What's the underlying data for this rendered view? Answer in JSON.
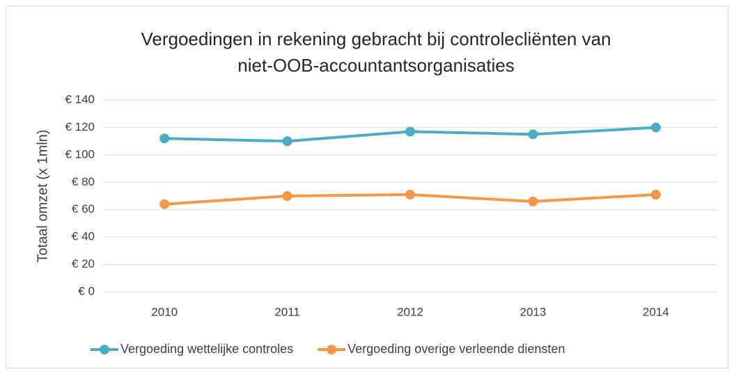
{
  "chart_data": {
    "type": "line",
    "title": [
      "Vergoedingen in rekening gebracht bij controlecliënten van",
      "niet-OOB-accountantsorganisaties"
    ],
    "y_label": "Totaal omzet (x 1mln)",
    "categories": [
      "2010",
      "2011",
      "2012",
      "2013",
      "2014"
    ],
    "series": [
      {
        "name": "Vergoeding wettelijke controles",
        "color": "#4bacc6",
        "values": [
          112,
          110,
          117,
          115,
          120
        ]
      },
      {
        "name": "Vergoeding overige verleende diensten",
        "color": "#f79646",
        "values": [
          64,
          70,
          71,
          66,
          71
        ]
      }
    ],
    "ylim": [
      0,
      140
    ],
    "yticks": [
      {
        "value": 0,
        "label": "€ 0"
      },
      {
        "value": 20,
        "label": "€ 20"
      },
      {
        "value": 40,
        "label": "€ 40"
      },
      {
        "value": 60,
        "label": "€ 60"
      },
      {
        "value": 80,
        "label": "€ 80"
      },
      {
        "value": 100,
        "label": "€ 100"
      },
      {
        "value": 120,
        "label": "€ 120"
      },
      {
        "value": 140,
        "label": "€ 140"
      }
    ],
    "grid": true,
    "legend": "bottom"
  }
}
